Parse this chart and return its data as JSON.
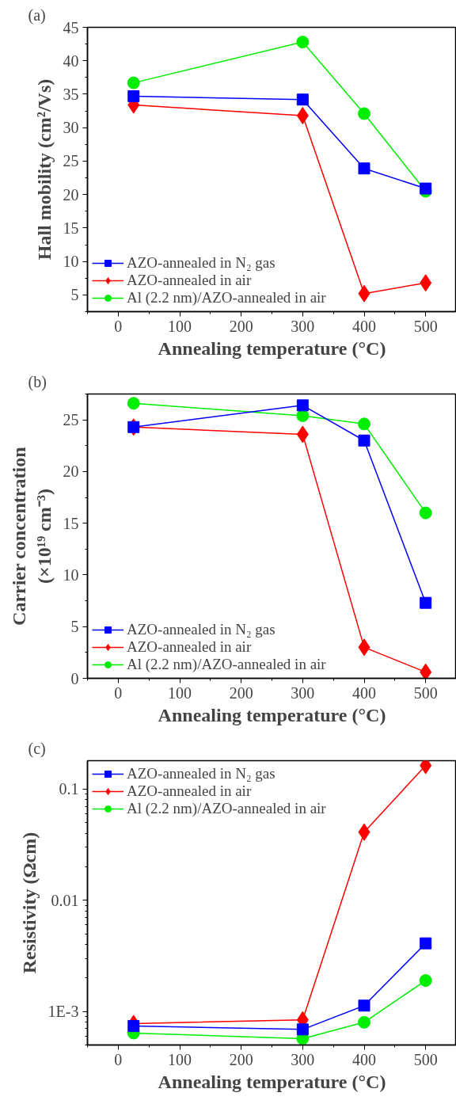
{
  "chart_data": [
    {
      "type": "line",
      "title": "(a)",
      "xlabel": "Annealing temperature (°C)",
      "ylabel": "Hall mobility (cm²/Vs)",
      "x": [
        25,
        300,
        400,
        500
      ],
      "xlim": [
        -50,
        550
      ],
      "xticks": [
        0,
        100,
        200,
        300,
        400,
        500
      ],
      "ylim": [
        2.5,
        45
      ],
      "yticks": [
        5,
        10,
        15,
        20,
        25,
        30,
        35,
        40,
        45
      ],
      "grid": false,
      "legend": "bottom left",
      "series": [
        {
          "name": "AZO-annealed in N₂ gas",
          "color": "#0000ff",
          "marker": "square",
          "values": [
            34.7,
            34.2,
            23.9,
            20.9
          ]
        },
        {
          "name": "AZO-annealed in air",
          "color": "#ff0000",
          "marker": "diamond",
          "values": [
            33.4,
            31.8,
            5.2,
            6.8
          ]
        },
        {
          "name": "Al (2.2 nm)/AZO-annealed in air",
          "color": "#00ee00",
          "marker": "circle",
          "values": [
            36.7,
            42.8,
            32.1,
            20.5
          ]
        }
      ]
    },
    {
      "type": "line",
      "title": "(b)",
      "xlabel": "Annealing temperature (°C)",
      "ylabel": "Carrier concentration\n(×10¹⁹ cm⁻³)",
      "x": [
        25,
        300,
        400,
        500
      ],
      "xlim": [
        -50,
        550
      ],
      "xticks": [
        0,
        100,
        200,
        300,
        400,
        500
      ],
      "ylim": [
        0,
        27.5
      ],
      "yticks": [
        0,
        5,
        10,
        15,
        20,
        25
      ],
      "grid": false,
      "legend": "bottom left",
      "series": [
        {
          "name": "AZO-annealed in N₂ gas",
          "color": "#0000ff",
          "marker": "square",
          "values": [
            24.3,
            26.4,
            23.0,
            7.3
          ]
        },
        {
          "name": "AZO-annealed in air",
          "color": "#ff0000",
          "marker": "diamond",
          "values": [
            24.3,
            23.6,
            3.0,
            0.6
          ]
        },
        {
          "name": "Al (2.2 nm)/AZO-annealed in air",
          "color": "#00ee00",
          "marker": "circle",
          "values": [
            26.6,
            25.4,
            24.6,
            16.0
          ]
        }
      ]
    },
    {
      "type": "line",
      "title": "(c)",
      "xlabel": "Annealing temperature (°C)",
      "ylabel": "Resistivity (Ωcm)",
      "x": [
        25,
        300,
        400,
        500
      ],
      "xlim": [
        -50,
        550
      ],
      "xticks": [
        0,
        100,
        200,
        300,
        400,
        500
      ],
      "log": "y",
      "ylim": [
        0.0005,
        0.18
      ],
      "yticks": [
        {
          "value": 0.001,
          "label": "1E-3"
        },
        0.01,
        0.1
      ],
      "grid": false,
      "legend": "top left",
      "series": [
        {
          "name": "AZO-annealed in N₂ gas",
          "color": "#0000ff",
          "marker": "square",
          "values": [
            0.00074,
            0.00069,
            0.00113,
            0.0041
          ]
        },
        {
          "name": "AZO-annealed in air",
          "color": "#ff0000",
          "marker": "diamond",
          "values": [
            0.00078,
            0.00084,
            0.041,
            0.163
          ]
        },
        {
          "name": "Al (2.2 nm)/AZO-annealed in air",
          "color": "#00ee00",
          "marker": "circle",
          "values": [
            0.00064,
            0.00057,
            0.0008,
            0.0019
          ]
        }
      ]
    }
  ]
}
